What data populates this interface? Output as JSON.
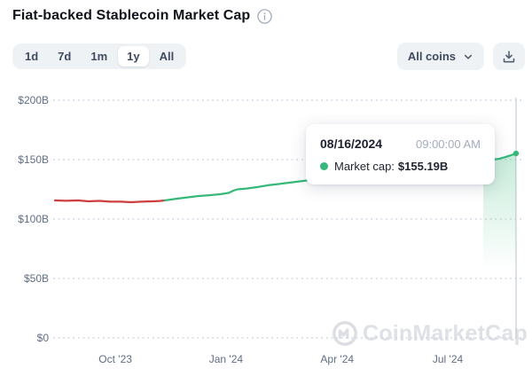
{
  "header": {
    "title": "Fiat-backed Stablecoin Market Cap"
  },
  "controls": {
    "ranges": [
      "1d",
      "7d",
      "1m",
      "1y",
      "All"
    ],
    "selected_range": "1y",
    "coin_filter_label": "All coins",
    "download_icon": "download-tray-arrow"
  },
  "tooltip": {
    "date": "08/16/2024",
    "time": "09:00:00 AM",
    "series_label": "Market cap:",
    "value": "$155.19B"
  },
  "watermark_text": "CoinMarketCap",
  "colors": {
    "green": "#35b879",
    "red": "#cd3e3c",
    "grid": "#ccd3df",
    "crosshair": "#c6cdd9"
  },
  "chart_data": {
    "type": "line",
    "title": "Fiat-backed Stablecoin Market Cap",
    "unit": "USD billions",
    "xlabel": "",
    "ylabel": "",
    "ylim": [
      0,
      200
    ],
    "grid": "dotted-horizontal",
    "legend": "none",
    "y_ticks": [
      {
        "v": 0,
        "label": "$0"
      },
      {
        "v": 50,
        "label": "$50B"
      },
      {
        "v": 100,
        "label": "$100B"
      },
      {
        "v": 150,
        "label": "$150B"
      },
      {
        "v": 200,
        "label": "$200B"
      }
    ],
    "x_ticks": [
      {
        "t": 0.131,
        "label": "Oct '23"
      },
      {
        "t": 0.371,
        "label": "Jan '24"
      },
      {
        "t": 0.612,
        "label": "Apr '24"
      },
      {
        "t": 0.852,
        "label": "Jul '24"
      }
    ],
    "series": [
      {
        "name": "Market cap (below period start)",
        "color": "#cd3e3c",
        "points": [
          [
            0.0,
            115.7
          ],
          [
            0.025,
            115.4
          ],
          [
            0.05,
            115.7
          ],
          [
            0.073,
            114.9
          ],
          [
            0.096,
            115.3
          ],
          [
            0.119,
            114.6
          ],
          [
            0.142,
            114.6
          ],
          [
            0.165,
            114.2
          ],
          [
            0.188,
            114.6
          ],
          [
            0.212,
            114.9
          ],
          [
            0.227,
            115.2
          ],
          [
            0.238,
            115.7
          ]
        ]
      },
      {
        "name": "Market cap (above period start)",
        "color": "#35b879",
        "points": [
          [
            0.238,
            115.7
          ],
          [
            0.265,
            117.2
          ],
          [
            0.288,
            118.3
          ],
          [
            0.312,
            119.4
          ],
          [
            0.335,
            120.1
          ],
          [
            0.358,
            120.9
          ],
          [
            0.377,
            122.0
          ],
          [
            0.387,
            123.9
          ],
          [
            0.396,
            125.0
          ],
          [
            0.415,
            125.7
          ],
          [
            0.438,
            126.9
          ],
          [
            0.462,
            128.4
          ],
          [
            0.485,
            129.5
          ],
          [
            0.508,
            130.6
          ],
          [
            0.531,
            131.7
          ],
          [
            0.554,
            132.8
          ],
          [
            0.583,
            134.7
          ],
          [
            0.612,
            136.2
          ],
          [
            0.64,
            137.7
          ],
          [
            0.669,
            139.2
          ],
          [
            0.698,
            140.7
          ],
          [
            0.727,
            142.2
          ],
          [
            0.756,
            143.3
          ],
          [
            0.785,
            144.4
          ],
          [
            0.813,
            145.5
          ],
          [
            0.842,
            146.6
          ],
          [
            0.871,
            147.8
          ],
          [
            0.9,
            148.9
          ],
          [
            0.929,
            149.6
          ],
          [
            0.948,
            150.0
          ],
          [
            0.963,
            150.7
          ],
          [
            0.977,
            152.2
          ],
          [
            0.988,
            153.6
          ],
          [
            1.0,
            155.19
          ]
        ]
      }
    ],
    "hover_point": {
      "t": 1.0,
      "v": 155.19,
      "date": "08/16/2024",
      "time": "09:00:00 AM"
    }
  }
}
